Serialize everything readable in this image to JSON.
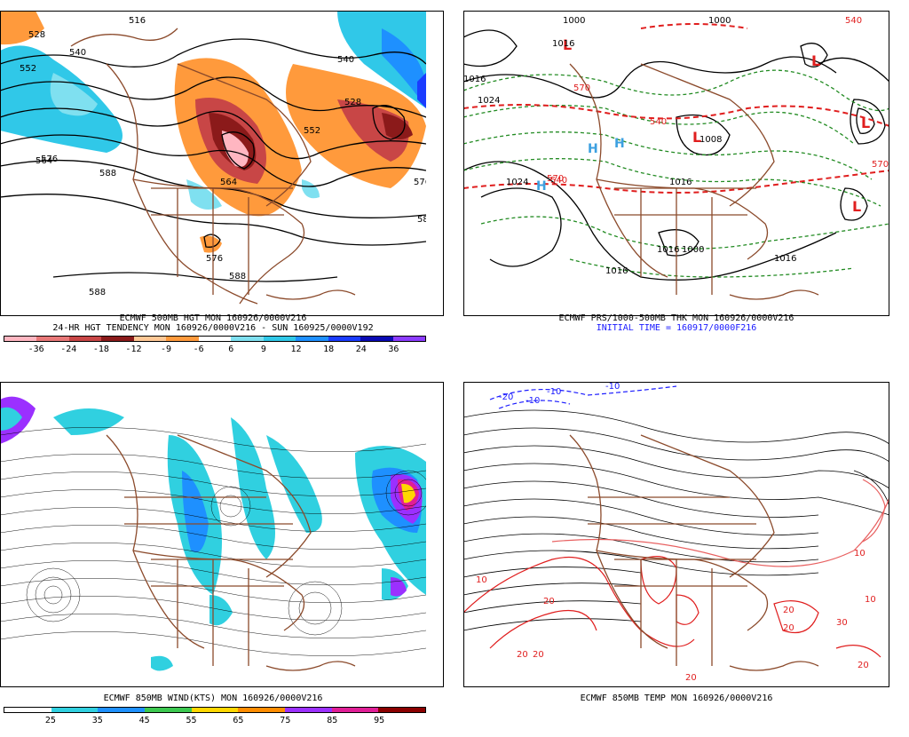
{
  "panels": {
    "p1": {
      "line1": "ECMWF 500MB HGT MON 160926/0000V216",
      "line2": "24-HR HGT TENDENCY MON 160926/0000V216 - SUN 160925/0000V192",
      "contour_labels": [
        "516",
        "528",
        "540",
        "552",
        "564",
        "576",
        "588",
        "528",
        "540",
        "552",
        "564",
        "576",
        "588",
        "576",
        "588",
        "58"
      ],
      "legend_ticks": [
        "-36",
        "-24",
        "-18",
        "-12",
        "-9",
        "-6",
        "6",
        "9",
        "12",
        "18",
        "24",
        "36"
      ],
      "legend_colors": [
        "#ffb6c1",
        "#e87878",
        "#c84646",
        "#8b1a1a",
        "#ffc896",
        "#ff9a3c",
        "#ffffff",
        "#7fe0f0",
        "#30c8e8",
        "#1e90ff",
        "#1a3cff",
        "#0a0ab4",
        "#8c3cff"
      ]
    },
    "p2": {
      "line1": "ECMWF PRS/1000-500MB THK MON 160926/0000V216",
      "line2": "INITIAL TIME = 160917/0000F216",
      "isobar_labels": [
        "1000",
        "1016",
        "1024",
        "1024",
        "1016",
        "1008",
        "1016",
        "1000",
        "1016",
        "1016",
        "1000",
        "1016"
      ],
      "thickness_labels": [
        "570",
        "540",
        "540",
        "570",
        "540",
        "570"
      ],
      "low_symbol": "L",
      "high_symbol": "H"
    },
    "p3": {
      "line1": "ECMWF 850MB WIND(KTS) MON 160926/0000V216",
      "legend_ticks": [
        "25",
        "35",
        "45",
        "55",
        "65",
        "75",
        "85",
        "95"
      ],
      "legend_colors": [
        "#ffffff",
        "#30d0e0",
        "#1e90ff",
        "#3cc850",
        "#ffd700",
        "#ff8c00",
        "#9b30ff",
        "#e01e96",
        "#8b0000"
      ]
    },
    "p4": {
      "line1": "ECMWF 850MB TEMP MON 160926/0000V216",
      "temp_labels": [
        "-10",
        "-10",
        "-10",
        "-20",
        "10",
        "10",
        "20",
        "20",
        "20",
        "20",
        "30",
        "20",
        "20",
        "10",
        "20"
      ]
    }
  }
}
